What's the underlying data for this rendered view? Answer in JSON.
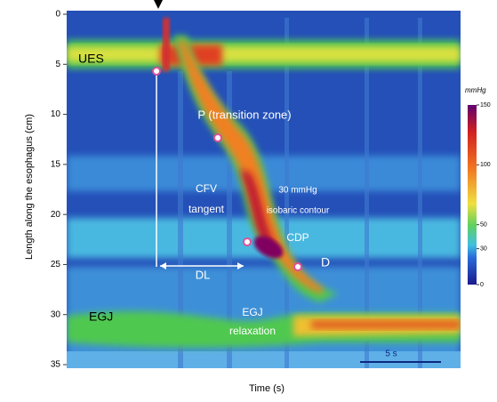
{
  "chart_data": {
    "type": "heatmap",
    "xlabel": "Time (s)",
    "ylabel": "Length along the esophagus (cm)",
    "ylim": [
      0,
      35
    ],
    "yticks": [
      0,
      5,
      10,
      15,
      20,
      25,
      30,
      35
    ],
    "colorbar": {
      "label": "mmHg",
      "lim": [
        0,
        150
      ],
      "ticks": [
        0,
        30,
        50,
        100,
        150
      ]
    },
    "annotations": [
      "UES",
      "P (transition zone)",
      "CFV",
      "tangent",
      "30 mmHg",
      "isobaric contour",
      "CDP",
      "D",
      "DL",
      "EGJ",
      "EGJ",
      "relaxation",
      "5 s"
    ]
  }
}
